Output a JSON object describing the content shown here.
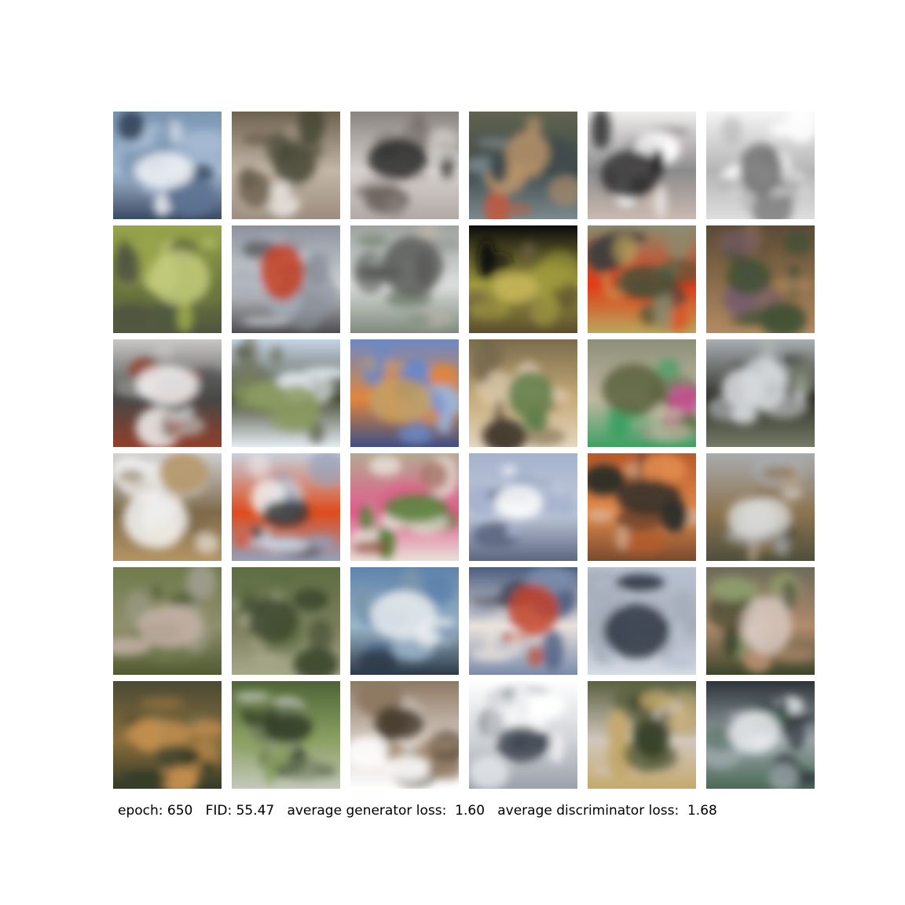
{
  "caption": {
    "text": "epoch: 650   FID: 55.47   average generator loss:  1.60   average discriminator loss:  1.68"
  },
  "samples": [
    {
      "colors": [
        "#7a96b3",
        "#a7bcd3",
        "#f0f2f4",
        "#3a4a63",
        "#5d7394"
      ]
    },
    {
      "colors": [
        "#6e624f",
        "#c2b6a6",
        "#4a4a38",
        "#9d8d80",
        "#e8e3de"
      ]
    },
    {
      "colors": [
        "#8a8480",
        "#d6d2cf",
        "#2a2a2a",
        "#b3a9a6",
        "#6f6760"
      ]
    },
    {
      "colors": [
        "#61634f",
        "#3e4a4c",
        "#b7926a",
        "#7b8a8f",
        "#c15a3e"
      ]
    },
    {
      "colors": [
        "#f1eeee",
        "#8c8b8c",
        "#2d2d2d",
        "#c9b9b0",
        "#ffffff"
      ]
    },
    {
      "colors": [
        "#f5f5f5",
        "#b4b4b4",
        "#6e6e6e",
        "#dedede",
        "#ffffff"
      ]
    },
    {
      "colors": [
        "#98a54b",
        "#6e7a3c",
        "#c3cc7c",
        "#4f5540",
        "#8f8e57"
      ]
    },
    {
      "colors": [
        "#8c929c",
        "#cfd2d6",
        "#c43e22",
        "#4d4c4f",
        "#a2aab4"
      ]
    },
    {
      "colors": [
        "#9fa39f",
        "#d9dcdb",
        "#5a5c59",
        "#7e8a7b",
        "#c3b7ad"
      ]
    },
    {
      "colors": [
        "#0b0b0b",
        "#9f9a3e",
        "#c8b55a",
        "#5a4e2e",
        "#705f44"
      ]
    },
    {
      "colors": [
        "#8b8c70",
        "#e23a16",
        "#465238",
        "#b9a75c",
        "#3e3e3e"
      ]
    },
    {
      "colors": [
        "#5b4a36",
        "#8b6e4a",
        "#3f5034",
        "#b38a63",
        "#765b6d"
      ]
    },
    {
      "colors": [
        "#c9c8c6",
        "#474747",
        "#f4f4f4",
        "#913f2a",
        "#8d8b86"
      ]
    },
    {
      "colors": [
        "#c5d4e6",
        "#4b4f37",
        "#8a9a60",
        "#e5ecf3",
        "#6c6e55"
      ]
    },
    {
      "colors": [
        "#6c88c4",
        "#e0863d",
        "#c9a15e",
        "#3e4f86",
        "#9bb4d9"
      ]
    },
    {
      "colors": [
        "#7b6b4d",
        "#c6aa78",
        "#5f7d49",
        "#e6d7c1",
        "#433a2d"
      ]
    },
    {
      "colors": [
        "#8c8f78",
        "#c2b8a3",
        "#59613d",
        "#3da063",
        "#d64a9c"
      ]
    },
    {
      "colors": [
        "#a9aeb2",
        "#303028",
        "#d6d9dc",
        "#737a66",
        "#b5b9b5"
      ]
    },
    {
      "colors": [
        "#cfcfcf",
        "#7e6a4b",
        "#f4f4f4",
        "#b49463",
        "#5c5239"
      ]
    },
    {
      "colors": [
        "#c7cfdc",
        "#df4b1c",
        "#3b3b3b",
        "#93a1bc",
        "#f1f1f1"
      ]
    },
    {
      "colors": [
        "#b4a991",
        "#e25b8c",
        "#58803a",
        "#e8e0d8",
        "#8f4f3f"
      ]
    },
    {
      "colors": [
        "#a5b2cc",
        "#c2cbdc",
        "#ffffff",
        "#5d6781",
        "#9aa7c1"
      ]
    },
    {
      "colors": [
        "#b85a2a",
        "#e18a4c",
        "#2f2f29",
        "#7a4a2d",
        "#d6b195"
      ]
    },
    {
      "colors": [
        "#a9abae",
        "#8c7450",
        "#d9dad9",
        "#4f4f3b",
        "#b9a48a"
      ]
    },
    {
      "colors": [
        "#6f7a4c",
        "#8f8f6b",
        "#c5b1a7",
        "#4f5a31",
        "#9d9c8b"
      ]
    },
    {
      "colors": [
        "#5d6d41",
        "#7a7e5b",
        "#3f4a31",
        "#a8a88b",
        "#5e5c4c"
      ]
    },
    {
      "colors": [
        "#5f83ab",
        "#9ab4c8",
        "#e9ecef",
        "#2c3947",
        "#7a95aa"
      ]
    },
    {
      "colors": [
        "#4b5e80",
        "#e9e1dc",
        "#c4442b",
        "#7a8cab",
        "#2f3441"
      ]
    },
    {
      "colors": [
        "#b9c2d1",
        "#a6aeba",
        "#2e3642",
        "#d7dde5",
        "#909aab"
      ]
    },
    {
      "colors": [
        "#6c6a59",
        "#b18b6c",
        "#d7c8bf",
        "#3b452b",
        "#8d9b6c"
      ]
    },
    {
      "colors": [
        "#4a4a34",
        "#8a6d3c",
        "#c28e4f",
        "#343b27",
        "#6b6a4a"
      ]
    },
    {
      "colors": [
        "#4e6437",
        "#8ba063",
        "#2e3a25",
        "#c4c8bb",
        "#6f7b5d"
      ]
    },
    {
      "colors": [
        "#8e7964",
        "#d3c9c0",
        "#4a3e30",
        "#ffffff",
        "#a88e76"
      ]
    },
    {
      "colors": [
        "#ffffff",
        "#cfd2d6",
        "#3e4652",
        "#9aa1ab",
        "#eceef0"
      ]
    },
    {
      "colors": [
        "#5a6040",
        "#d1c7bd",
        "#343d26",
        "#c5a96c",
        "#7a8f56"
      ]
    },
    {
      "colors": [
        "#2e343a",
        "#9aa6a8",
        "#e8eaec",
        "#4c6a58",
        "#6b7478"
      ]
    }
  ]
}
